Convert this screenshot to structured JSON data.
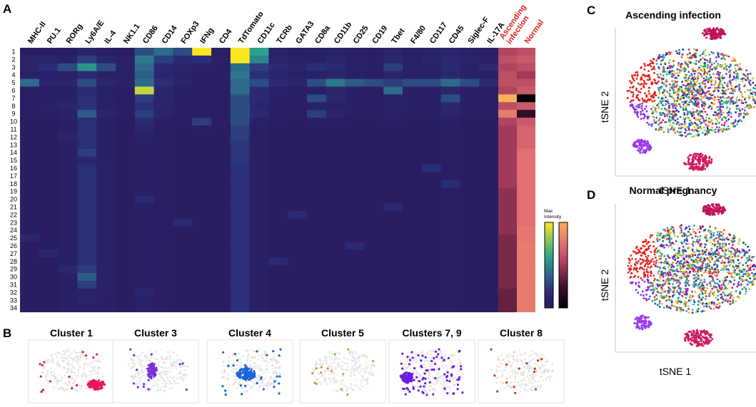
{
  "panels": {
    "A": "A",
    "B": "B",
    "C": "C",
    "D": "D"
  },
  "chart_data": [
    {
      "type": "heatmap",
      "columns": [
        "MHC-II",
        "PU.1",
        "RORg",
        "Ly6A/E",
        "IL-4",
        "NK1.1",
        "CD86",
        "CD14",
        "FOXp3",
        "IFNg",
        "CD4",
        "TdTomato",
        "CD11c",
        "TCRb",
        "GATA3",
        "CD8a",
        "CD11b",
        "CD25",
        "CD19",
        "Tbet",
        "F4/80",
        "CD117",
        "CD45",
        "Siglec-F",
        "IL-17A"
      ],
      "columns_red": [
        "Ascending\ninfection",
        "Normal"
      ],
      "rows": [
        "1",
        "2",
        "3",
        "4",
        "5",
        "6",
        "7",
        "8",
        "9",
        "10",
        "11",
        "12",
        "13",
        "14",
        "15",
        "16",
        "17",
        "18",
        "19",
        "20",
        "21",
        "22",
        "23",
        "24",
        "25",
        "26",
        "27",
        "28",
        "29",
        "30",
        "31",
        "32",
        "33",
        "34"
      ],
      "values": [
        [
          0.04,
          0.04,
          0.04,
          0.1,
          0.05,
          0.04,
          0.3,
          0.4,
          0.3,
          1.0,
          0.05,
          1.0,
          0.6,
          0.08,
          0.05,
          0.05,
          0.08,
          0.05,
          0.05,
          0.1,
          0.05,
          0.08,
          0.1,
          0.08,
          0.05
        ],
        [
          0.1,
          0.1,
          0.08,
          0.25,
          0.12,
          0.06,
          0.45,
          0.25,
          0.15,
          0.2,
          0.08,
          1.0,
          0.5,
          0.1,
          0.06,
          0.08,
          0.12,
          0.08,
          0.06,
          0.12,
          0.08,
          0.1,
          0.15,
          0.1,
          0.08
        ],
        [
          0.1,
          0.2,
          0.3,
          0.55,
          0.3,
          0.08,
          0.4,
          0.15,
          0.1,
          0.08,
          0.06,
          0.4,
          0.25,
          0.15,
          0.1,
          0.2,
          0.15,
          0.08,
          0.06,
          0.25,
          0.08,
          0.08,
          0.15,
          0.08,
          0.15
        ],
        [
          0.08,
          0.08,
          0.08,
          0.15,
          0.08,
          0.06,
          0.35,
          0.12,
          0.08,
          0.05,
          0.05,
          0.45,
          0.2,
          0.1,
          0.06,
          0.08,
          0.1,
          0.06,
          0.05,
          0.1,
          0.06,
          0.06,
          0.12,
          0.06,
          0.06
        ],
        [
          0.4,
          0.1,
          0.1,
          0.3,
          0.12,
          0.08,
          0.4,
          0.2,
          0.1,
          0.06,
          0.05,
          0.4,
          0.3,
          0.15,
          0.1,
          0.3,
          0.45,
          0.35,
          0.3,
          0.25,
          0.3,
          0.3,
          0.4,
          0.3,
          0.15
        ],
        [
          0.05,
          0.05,
          0.05,
          0.15,
          0.06,
          0.05,
          0.9,
          0.12,
          0.06,
          0.05,
          0.05,
          0.4,
          0.15,
          0.08,
          0.05,
          0.06,
          0.1,
          0.06,
          0.05,
          0.4,
          0.06,
          0.06,
          0.1,
          0.06,
          0.05
        ],
        [
          0.05,
          0.05,
          0.06,
          0.2,
          0.08,
          0.05,
          0.25,
          0.12,
          0.06,
          0.05,
          0.05,
          0.3,
          0.15,
          0.06,
          0.05,
          0.3,
          0.12,
          0.06,
          0.05,
          0.08,
          0.06,
          0.06,
          0.3,
          0.06,
          0.05
        ],
        [
          0.05,
          0.08,
          0.1,
          0.2,
          0.08,
          0.05,
          0.2,
          0.1,
          0.06,
          0.05,
          0.05,
          0.3,
          0.12,
          0.06,
          0.05,
          0.08,
          0.08,
          0.06,
          0.05,
          0.08,
          0.06,
          0.06,
          0.12,
          0.06,
          0.06
        ],
        [
          0.05,
          0.05,
          0.08,
          0.35,
          0.1,
          0.05,
          0.25,
          0.1,
          0.06,
          0.05,
          0.05,
          0.3,
          0.15,
          0.06,
          0.05,
          0.25,
          0.1,
          0.06,
          0.05,
          0.08,
          0.06,
          0.06,
          0.1,
          0.06,
          0.06
        ],
        [
          0.04,
          0.04,
          0.06,
          0.2,
          0.06,
          0.04,
          0.15,
          0.06,
          0.05,
          0.25,
          0.05,
          0.3,
          0.08,
          0.05,
          0.04,
          0.05,
          0.05,
          0.04,
          0.04,
          0.05,
          0.04,
          0.04,
          0.06,
          0.04,
          0.04
        ],
        [
          0.04,
          0.04,
          0.06,
          0.2,
          0.06,
          0.04,
          0.1,
          0.05,
          0.04,
          0.05,
          0.04,
          0.25,
          0.06,
          0.04,
          0.04,
          0.04,
          0.04,
          0.04,
          0.04,
          0.04,
          0.04,
          0.04,
          0.05,
          0.04,
          0.04
        ],
        [
          0.04,
          0.04,
          0.1,
          0.2,
          0.06,
          0.04,
          0.08,
          0.05,
          0.04,
          0.04,
          0.04,
          0.25,
          0.06,
          0.04,
          0.04,
          0.04,
          0.04,
          0.04,
          0.04,
          0.04,
          0.04,
          0.04,
          0.05,
          0.04,
          0.04
        ],
        [
          0.04,
          0.04,
          0.06,
          0.18,
          0.06,
          0.04,
          0.06,
          0.05,
          0.04,
          0.04,
          0.04,
          0.22,
          0.06,
          0.04,
          0.04,
          0.04,
          0.04,
          0.04,
          0.04,
          0.04,
          0.04,
          0.04,
          0.05,
          0.04,
          0.04
        ],
        [
          0.04,
          0.04,
          0.06,
          0.25,
          0.06,
          0.04,
          0.06,
          0.05,
          0.04,
          0.04,
          0.04,
          0.22,
          0.06,
          0.04,
          0.04,
          0.04,
          0.04,
          0.04,
          0.04,
          0.04,
          0.04,
          0.04,
          0.05,
          0.04,
          0.04
        ],
        [
          0.04,
          0.04,
          0.06,
          0.12,
          0.06,
          0.04,
          0.06,
          0.05,
          0.04,
          0.04,
          0.04,
          0.22,
          0.06,
          0.04,
          0.04,
          0.04,
          0.04,
          0.04,
          0.04,
          0.04,
          0.04,
          0.04,
          0.05,
          0.04,
          0.04
        ],
        [
          0.04,
          0.04,
          0.06,
          0.2,
          0.08,
          0.04,
          0.06,
          0.05,
          0.04,
          0.04,
          0.04,
          0.2,
          0.06,
          0.04,
          0.04,
          0.04,
          0.04,
          0.04,
          0.04,
          0.04,
          0.04,
          0.2,
          0.05,
          0.04,
          0.04
        ],
        [
          0.04,
          0.04,
          0.06,
          0.2,
          0.08,
          0.04,
          0.06,
          0.05,
          0.04,
          0.04,
          0.04,
          0.2,
          0.06,
          0.04,
          0.04,
          0.04,
          0.04,
          0.04,
          0.04,
          0.04,
          0.04,
          0.04,
          0.05,
          0.04,
          0.04
        ],
        [
          0.04,
          0.04,
          0.06,
          0.2,
          0.08,
          0.04,
          0.06,
          0.05,
          0.04,
          0.04,
          0.04,
          0.2,
          0.06,
          0.04,
          0.04,
          0.04,
          0.04,
          0.04,
          0.04,
          0.04,
          0.04,
          0.04,
          0.18,
          0.04,
          0.04
        ],
        [
          0.04,
          0.04,
          0.06,
          0.2,
          0.08,
          0.04,
          0.06,
          0.05,
          0.04,
          0.04,
          0.04,
          0.2,
          0.06,
          0.04,
          0.04,
          0.04,
          0.04,
          0.04,
          0.04,
          0.04,
          0.04,
          0.04,
          0.05,
          0.04,
          0.04
        ],
        [
          0.04,
          0.04,
          0.06,
          0.2,
          0.08,
          0.04,
          0.15,
          0.05,
          0.04,
          0.04,
          0.04,
          0.2,
          0.06,
          0.04,
          0.04,
          0.04,
          0.04,
          0.04,
          0.04,
          0.04,
          0.04,
          0.04,
          0.05,
          0.04,
          0.04
        ],
        [
          0.04,
          0.04,
          0.06,
          0.2,
          0.08,
          0.04,
          0.06,
          0.05,
          0.04,
          0.04,
          0.04,
          0.2,
          0.06,
          0.04,
          0.04,
          0.04,
          0.04,
          0.04,
          0.04,
          0.15,
          0.04,
          0.04,
          0.05,
          0.04,
          0.04
        ],
        [
          0.04,
          0.04,
          0.06,
          0.2,
          0.08,
          0.04,
          0.06,
          0.05,
          0.04,
          0.04,
          0.04,
          0.2,
          0.06,
          0.04,
          0.15,
          0.04,
          0.04,
          0.04,
          0.04,
          0.04,
          0.04,
          0.04,
          0.05,
          0.04,
          0.04
        ],
        [
          0.04,
          0.04,
          0.06,
          0.2,
          0.08,
          0.04,
          0.06,
          0.05,
          0.15,
          0.04,
          0.04,
          0.2,
          0.06,
          0.04,
          0.04,
          0.04,
          0.04,
          0.04,
          0.04,
          0.04,
          0.04,
          0.04,
          0.05,
          0.04,
          0.04
        ],
        [
          0.04,
          0.04,
          0.06,
          0.2,
          0.08,
          0.04,
          0.06,
          0.05,
          0.04,
          0.04,
          0.04,
          0.2,
          0.06,
          0.04,
          0.04,
          0.04,
          0.04,
          0.04,
          0.04,
          0.04,
          0.04,
          0.04,
          0.05,
          0.04,
          0.04
        ],
        [
          0.12,
          0.04,
          0.06,
          0.2,
          0.08,
          0.04,
          0.06,
          0.05,
          0.04,
          0.04,
          0.04,
          0.2,
          0.06,
          0.04,
          0.04,
          0.04,
          0.04,
          0.04,
          0.04,
          0.04,
          0.04,
          0.04,
          0.05,
          0.04,
          0.04
        ],
        [
          0.04,
          0.04,
          0.06,
          0.2,
          0.08,
          0.04,
          0.06,
          0.05,
          0.04,
          0.04,
          0.04,
          0.2,
          0.06,
          0.04,
          0.04,
          0.04,
          0.04,
          0.15,
          0.04,
          0.04,
          0.04,
          0.04,
          0.05,
          0.04,
          0.04
        ],
        [
          0.04,
          0.12,
          0.06,
          0.2,
          0.08,
          0.04,
          0.06,
          0.05,
          0.04,
          0.04,
          0.04,
          0.2,
          0.06,
          0.04,
          0.04,
          0.04,
          0.04,
          0.04,
          0.04,
          0.04,
          0.04,
          0.04,
          0.05,
          0.04,
          0.04
        ],
        [
          0.04,
          0.04,
          0.06,
          0.2,
          0.08,
          0.04,
          0.06,
          0.05,
          0.04,
          0.04,
          0.04,
          0.2,
          0.06,
          0.15,
          0.04,
          0.04,
          0.04,
          0.04,
          0.04,
          0.04,
          0.04,
          0.04,
          0.05,
          0.04,
          0.04
        ],
        [
          0.04,
          0.04,
          0.12,
          0.25,
          0.08,
          0.04,
          0.06,
          0.05,
          0.04,
          0.04,
          0.04,
          0.2,
          0.06,
          0.04,
          0.04,
          0.04,
          0.04,
          0.04,
          0.04,
          0.04,
          0.04,
          0.04,
          0.05,
          0.04,
          0.04
        ],
        [
          0.04,
          0.04,
          0.06,
          0.35,
          0.08,
          0.04,
          0.06,
          0.05,
          0.04,
          0.04,
          0.04,
          0.2,
          0.06,
          0.04,
          0.04,
          0.04,
          0.04,
          0.04,
          0.04,
          0.04,
          0.04,
          0.04,
          0.05,
          0.04,
          0.04
        ],
        [
          0.04,
          0.04,
          0.06,
          0.25,
          0.08,
          0.04,
          0.06,
          0.05,
          0.04,
          0.04,
          0.04,
          0.2,
          0.06,
          0.04,
          0.04,
          0.04,
          0.04,
          0.04,
          0.04,
          0.04,
          0.04,
          0.04,
          0.05,
          0.04,
          0.04
        ],
        [
          0.04,
          0.04,
          0.06,
          0.08,
          0.06,
          0.04,
          0.12,
          0.05,
          0.04,
          0.04,
          0.04,
          0.2,
          0.06,
          0.04,
          0.04,
          0.04,
          0.04,
          0.04,
          0.04,
          0.04,
          0.04,
          0.04,
          0.05,
          0.04,
          0.04
        ],
        [
          0.04,
          0.04,
          0.06,
          0.1,
          0.06,
          0.04,
          0.06,
          0.05,
          0.04,
          0.04,
          0.04,
          0.2,
          0.06,
          0.04,
          0.04,
          0.04,
          0.04,
          0.04,
          0.04,
          0.04,
          0.04,
          0.04,
          0.05,
          0.04,
          0.04
        ],
        [
          0.04,
          0.04,
          0.06,
          0.06,
          0.06,
          0.04,
          0.08,
          0.05,
          0.04,
          0.04,
          0.04,
          0.2,
          0.06,
          0.04,
          0.04,
          0.04,
          0.04,
          0.04,
          0.04,
          0.04,
          0.04,
          0.04,
          0.05,
          0.04,
          0.04
        ]
      ],
      "ascending_infection": [
        0.55,
        0.6,
        0.55,
        0.6,
        0.6,
        0.55,
        1.0,
        0.6,
        0.8,
        0.55,
        0.5,
        0.5,
        0.5,
        0.5,
        0.5,
        0.5,
        0.5,
        0.5,
        0.45,
        0.45,
        0.45,
        0.45,
        0.45,
        0.45,
        0.4,
        0.4,
        0.4,
        0.4,
        0.4,
        0.4,
        0.4,
        0.35,
        0.35,
        0.35
      ],
      "normal": [
        0.6,
        0.65,
        0.6,
        0.5,
        0.6,
        0.65,
        0.0,
        0.65,
        0.2,
        0.65,
        0.7,
        0.7,
        0.7,
        0.75,
        0.75,
        0.75,
        0.75,
        0.75,
        0.75,
        0.75,
        0.75,
        0.75,
        0.75,
        0.78,
        0.78,
        0.8,
        0.8,
        0.8,
        0.8,
        0.8,
        0.8,
        0.8,
        0.8,
        0.8
      ],
      "legend": {
        "label": "Max\nIntensity"
      }
    }
  ],
  "panel_b": {
    "titles": [
      "Cluster 1",
      "Cluster 3",
      "Cluster 4",
      "Cluster 5",
      "Clusters 7, 9",
      "Cluster 8"
    ],
    "highlight_colors": [
      "#e8155e",
      "#7b2fd8",
      "#1a63d6",
      "#c49a3a",
      "#6a1fe0",
      "#c23a1a"
    ]
  },
  "panel_c": {
    "title": "Ascending infection",
    "xlabel": "tSNE 1",
    "ylabel": "tSNE 2"
  },
  "panel_d": {
    "title": "Normal pregnancy",
    "xlabel": "tSNE 1",
    "ylabel": "tSNE 2"
  }
}
